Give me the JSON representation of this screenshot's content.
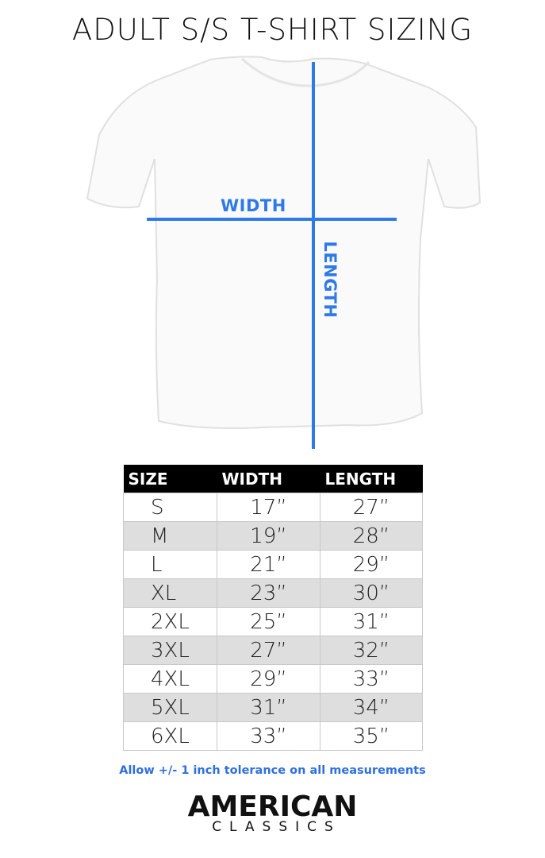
{
  "title": "ADULT S/S T-SHIRT SIZING",
  "diagram": {
    "width_label": "WIDTH",
    "length_label": "LENGTH",
    "line_color": "#2e7ae8"
  },
  "table": {
    "headers": [
      "SIZE",
      "WIDTH",
      "LENGTH"
    ],
    "rows": [
      [
        "S",
        "17”",
        "27”"
      ],
      [
        "M",
        "19”",
        "28”"
      ],
      [
        "L",
        "21”",
        "29”"
      ],
      [
        "XL",
        "23”",
        "30”"
      ],
      [
        "2XL",
        "25”",
        "31”"
      ],
      [
        "3XL",
        "27”",
        "32”"
      ],
      [
        "4XL",
        "29”",
        "33”"
      ],
      [
        "5XL",
        "31”",
        "34”"
      ],
      [
        "6XL",
        "33”",
        "35”"
      ]
    ]
  },
  "note": "Allow +/- 1 inch tolerance on all measurements",
  "logo": {
    "line1": "AMERICAN",
    "line2": "CLASSICS"
  }
}
